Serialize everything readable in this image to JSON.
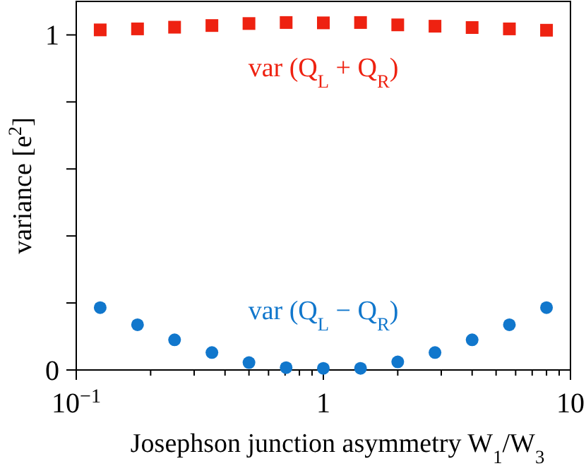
{
  "chart_data": {
    "type": "scatter",
    "xlabel": "Josephson junction asymmetry W$_{1}$/W$_{3}$",
    "ylabel": "variance [e$^{2}$]",
    "log": "x",
    "xlim": [
      0.1,
      10
    ],
    "ylim": [
      0,
      1.1
    ],
    "xticks": [
      {
        "value": 0.1,
        "label": "10$^{−1}$"
      },
      {
        "value": 0.2,
        "label": null
      },
      {
        "value": 0.3,
        "label": null
      },
      {
        "value": 0.4,
        "label": null
      },
      {
        "value": 0.5,
        "label": null
      },
      {
        "value": 0.6,
        "label": null
      },
      {
        "value": 0.7,
        "label": null
      },
      {
        "value": 0.8,
        "label": null
      },
      {
        "value": 0.9,
        "label": null
      },
      1,
      {
        "value": 2,
        "label": null
      },
      {
        "value": 3,
        "label": null
      },
      {
        "value": 4,
        "label": null
      },
      {
        "value": 5,
        "label": null
      },
      {
        "value": 6,
        "label": null
      },
      {
        "value": 7,
        "label": null
      },
      {
        "value": 8,
        "label": null
      },
      {
        "value": 9,
        "label": null
      },
      10
    ],
    "yticks": [
      0,
      {
        "value": 0.2,
        "label": null
      },
      {
        "value": 0.4,
        "label": null
      },
      {
        "value": 0.6,
        "label": null
      },
      {
        "value": 0.8,
        "label": null
      },
      1
    ],
    "grid": false,
    "x": [
      0.125,
      0.177,
      0.25,
      0.354,
      0.5,
      0.707,
      1,
      1.414,
      2,
      2.83,
      4,
      5.66,
      8
    ],
    "series": [
      {
        "name": "var (Q$_{L}$ + Q$_{R}$)",
        "color": "#ee2211",
        "marker": "square",
        "values": [
          1.015,
          1.018,
          1.023,
          1.028,
          1.034,
          1.037,
          1.036,
          1.037,
          1.03,
          1.026,
          1.022,
          1.018,
          1.014
        ]
      },
      {
        "name": "var (Q$_{L}$ − Q$_{R}$)",
        "color": "#1177cc",
        "marker": "circle",
        "values": [
          0.186,
          0.135,
          0.09,
          0.052,
          0.022,
          0.007,
          0.005,
          0.005,
          0.024,
          0.052,
          0.09,
          0.135,
          0.186
        ]
      }
    ]
  }
}
